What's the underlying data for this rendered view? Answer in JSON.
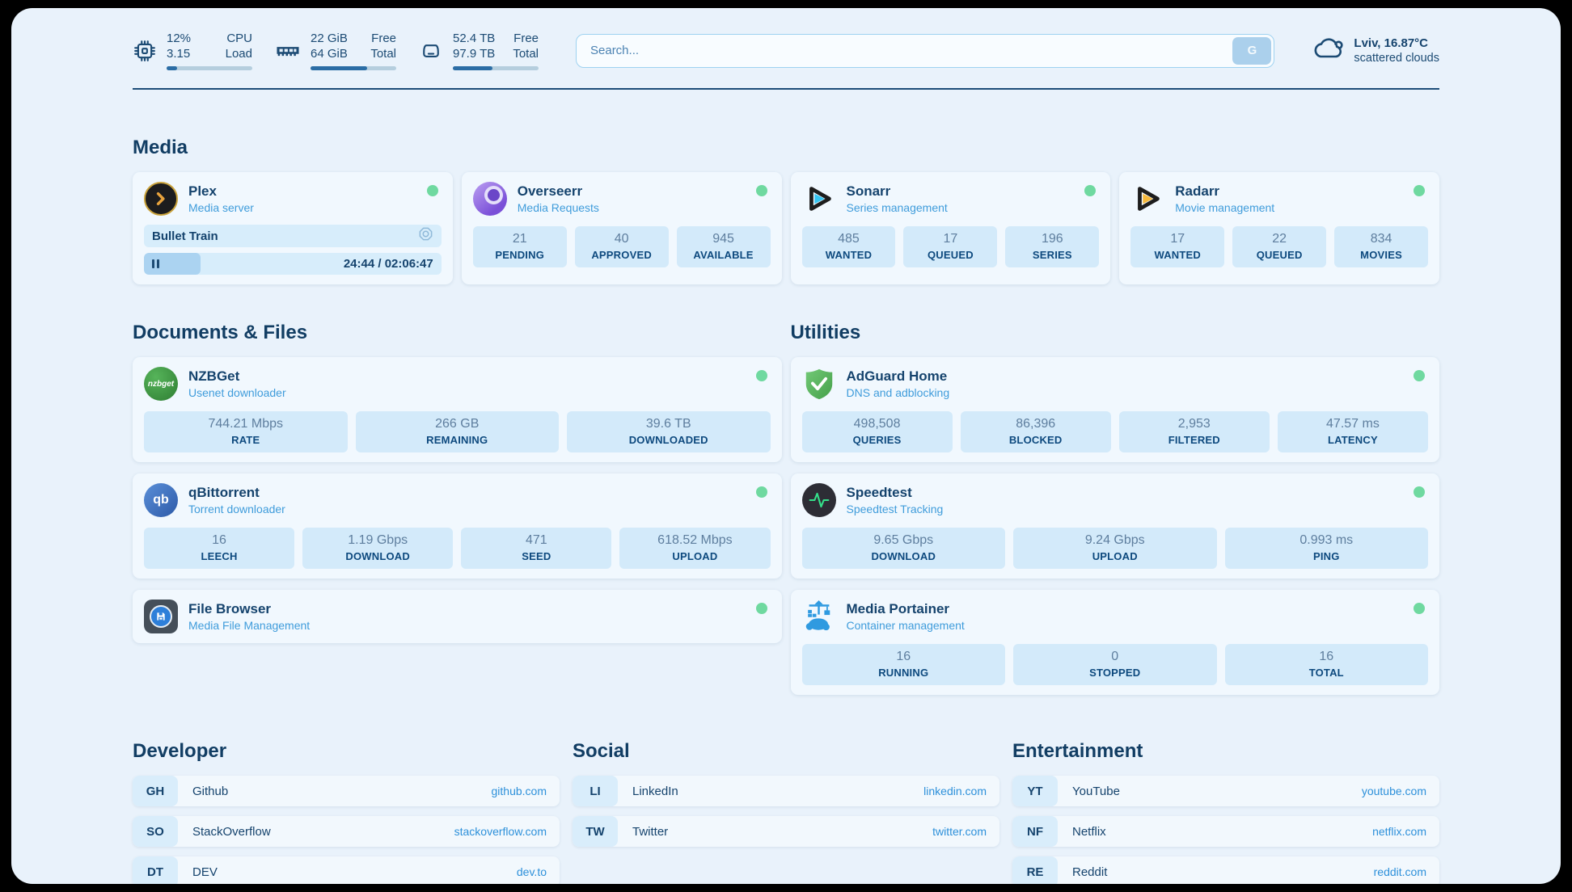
{
  "colors": {
    "page_bg": "#e9f2fb",
    "card_bg": "#f1f8fe",
    "stat_bg": "#d3eafa",
    "text_dark": "#15436d",
    "text_subtitle": "#3f9cdb",
    "stat_value": "#5e7e9e",
    "stat_label": "#0d497e",
    "status_online": "#6fd9a0",
    "link_blue": "#2d90da",
    "divider": "#1d4d78"
  },
  "topbar": {
    "resources": [
      {
        "icon": "cpu-icon",
        "value_top": "12%",
        "value_bottom": "3.15",
        "label_top": "CPU",
        "label_bottom": "Load",
        "progress_pct": 12
      },
      {
        "icon": "memory-icon",
        "value_top": "22 GiB",
        "value_bottom": "64 GiB",
        "label_top": "Free",
        "label_bottom": "Total",
        "progress_pct": 66
      },
      {
        "icon": "disk-icon",
        "value_top": "52.4 TB",
        "value_bottom": "97.9 TB",
        "label_top": "Free",
        "label_bottom": "Total",
        "progress_pct": 46
      }
    ],
    "search": {
      "placeholder": "Search...",
      "button_label": "G"
    },
    "weather": {
      "icon": "cloud-icon",
      "location": "Lviv, 16.87°C",
      "condition": "scattered clouds"
    }
  },
  "sections": {
    "media": "Media",
    "documents": "Documents & Files",
    "utilities": "Utilities",
    "developer": "Developer",
    "social": "Social",
    "entertainment": "Entertainment"
  },
  "services": {
    "plex": {
      "name": "Plex",
      "description": "Media server",
      "status": "online",
      "now_playing": "Bullet Train",
      "elapsed_total": "24:44 / 02:06:47",
      "progress_pct": 19
    },
    "overseerr": {
      "name": "Overseerr",
      "description": "Media Requests",
      "status": "online",
      "stats": [
        {
          "value": "21",
          "label": "PENDING"
        },
        {
          "value": "40",
          "label": "APPROVED"
        },
        {
          "value": "945",
          "label": "AVAILABLE"
        }
      ]
    },
    "sonarr": {
      "name": "Sonarr",
      "description": "Series management",
      "status": "online",
      "stats": [
        {
          "value": "485",
          "label": "WANTED"
        },
        {
          "value": "17",
          "label": "QUEUED"
        },
        {
          "value": "196",
          "label": "SERIES"
        }
      ]
    },
    "radarr": {
      "name": "Radarr",
      "description": "Movie management",
      "status": "online",
      "stats": [
        {
          "value": "17",
          "label": "WANTED"
        },
        {
          "value": "22",
          "label": "QUEUED"
        },
        {
          "value": "834",
          "label": "MOVIES"
        }
      ]
    },
    "nzbget": {
      "name": "NZBGet",
      "description": "Usenet downloader",
      "status": "online",
      "icon_text": "nzbget",
      "stats": [
        {
          "value": "744.21 Mbps",
          "label": "RATE"
        },
        {
          "value": "266 GB",
          "label": "REMAINING"
        },
        {
          "value": "39.6 TB",
          "label": "DOWNLOADED"
        }
      ]
    },
    "qbittorrent": {
      "name": "qBittorrent",
      "description": "Torrent downloader",
      "status": "online",
      "icon_text": "qb",
      "stats": [
        {
          "value": "16",
          "label": "LEECH"
        },
        {
          "value": "1.19 Gbps",
          "label": "DOWNLOAD"
        },
        {
          "value": "471",
          "label": "SEED"
        },
        {
          "value": "618.52 Mbps",
          "label": "UPLOAD"
        }
      ]
    },
    "filebrowser": {
      "name": "File Browser",
      "description": "Media File Management",
      "status": "online"
    },
    "adguard": {
      "name": "AdGuard Home",
      "description": "DNS and adblocking",
      "status": "online",
      "stats": [
        {
          "value": "498,508",
          "label": "QUERIES"
        },
        {
          "value": "86,396",
          "label": "BLOCKED"
        },
        {
          "value": "2,953",
          "label": "FILTERED"
        },
        {
          "value": "47.57 ms",
          "label": "LATENCY"
        }
      ]
    },
    "speedtest": {
      "name": "Speedtest",
      "description": "Speedtest Tracking",
      "status": "online",
      "stats": [
        {
          "value": "9.65 Gbps",
          "label": "DOWNLOAD"
        },
        {
          "value": "9.24 Gbps",
          "label": "UPLOAD"
        },
        {
          "value": "0.993 ms",
          "label": "PING"
        }
      ]
    },
    "portainer": {
      "name": "Media Portainer",
      "description": "Container management",
      "status": "online",
      "stats": [
        {
          "value": "16",
          "label": "RUNNING"
        },
        {
          "value": "0",
          "label": "STOPPED"
        },
        {
          "value": "16",
          "label": "TOTAL"
        }
      ]
    }
  },
  "bookmarks": {
    "developer": [
      {
        "abbr": "GH",
        "name": "Github",
        "url": "github.com"
      },
      {
        "abbr": "SO",
        "name": "StackOverflow",
        "url": "stackoverflow.com"
      },
      {
        "abbr": "DT",
        "name": "DEV",
        "url": "dev.to"
      }
    ],
    "social": [
      {
        "abbr": "LI",
        "name": "LinkedIn",
        "url": "linkedin.com"
      },
      {
        "abbr": "TW",
        "name": "Twitter",
        "url": "twitter.com"
      }
    ],
    "entertainment": [
      {
        "abbr": "YT",
        "name": "YouTube",
        "url": "youtube.com"
      },
      {
        "abbr": "NF",
        "name": "Netflix",
        "url": "netflix.com"
      },
      {
        "abbr": "RE",
        "name": "Reddit",
        "url": "reddit.com"
      }
    ]
  }
}
